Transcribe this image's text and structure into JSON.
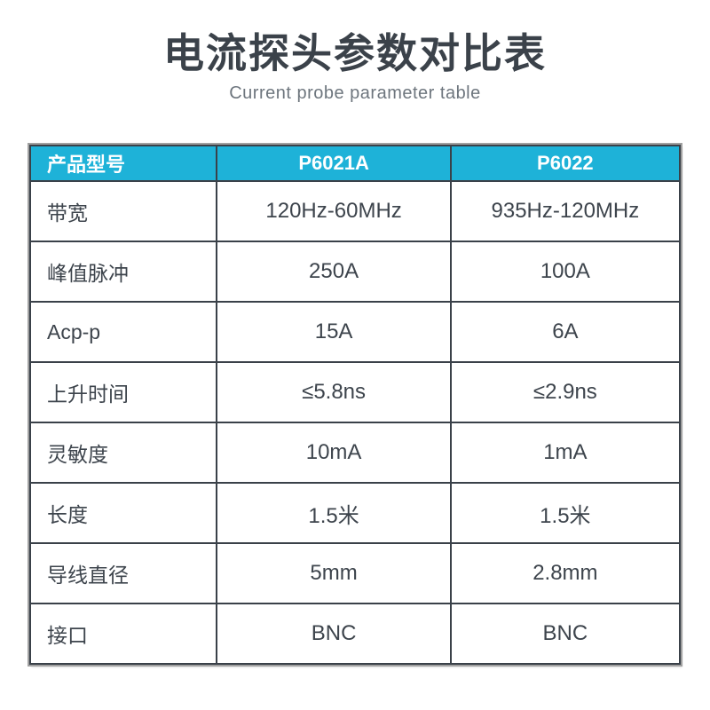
{
  "page": {
    "title": "电流探头参数对比表",
    "subtitle": "Current probe parameter table"
  },
  "colors": {
    "header_bg": "#1eb2d8",
    "header_text": "#ffffff",
    "grid_border": "#3a4149",
    "outer_border": "#a0a0a0",
    "cell_text": "#3d444c",
    "title_text": "#3b424a",
    "subtitle_text": "#6e767e"
  },
  "table": {
    "columns": [
      "产品型号",
      "P6021A",
      "P6022"
    ],
    "rows": [
      {
        "label": "带宽",
        "p6021a": "120Hz-60MHz",
        "p6022": "935Hz-120MHz"
      },
      {
        "label": "峰值脉冲",
        "p6021a": "250A",
        "p6022": "100A"
      },
      {
        "label": "Acp-p",
        "p6021a": "15A",
        "p6022": "6A"
      },
      {
        "label": "上升时间",
        "p6021a": "≤5.8ns",
        "p6022": "≤2.9ns"
      },
      {
        "label": "灵敏度",
        "p6021a": "10mA",
        "p6022": "1mA"
      },
      {
        "label": "长度",
        "p6021a": "1.5米",
        "p6022": "1.5米"
      },
      {
        "label": "导线直径",
        "p6021a": "5mm",
        "p6022": "2.8mm"
      },
      {
        "label": "接口",
        "p6021a": "BNC",
        "p6022": "BNC"
      }
    ]
  },
  "chart_data": {
    "type": "table",
    "title": "电流探头参数对比表",
    "subtitle": "Current probe parameter table",
    "columns": [
      "产品型号",
      "P6021A",
      "P6022"
    ],
    "rows": [
      [
        "带宽",
        "120Hz-60MHz",
        "935Hz-120MHz"
      ],
      [
        "峰值脉冲",
        "250A",
        "100A"
      ],
      [
        "Acp-p",
        "15A",
        "6A"
      ],
      [
        "上升时间",
        "≤5.8ns",
        "≤2.9ns"
      ],
      [
        "灵敏度",
        "10mA",
        "1mA"
      ],
      [
        "长度",
        "1.5米",
        "1.5米"
      ],
      [
        "导线直径",
        "5mm",
        "2.8mm"
      ],
      [
        "接口",
        "BNC",
        "BNC"
      ]
    ]
  }
}
